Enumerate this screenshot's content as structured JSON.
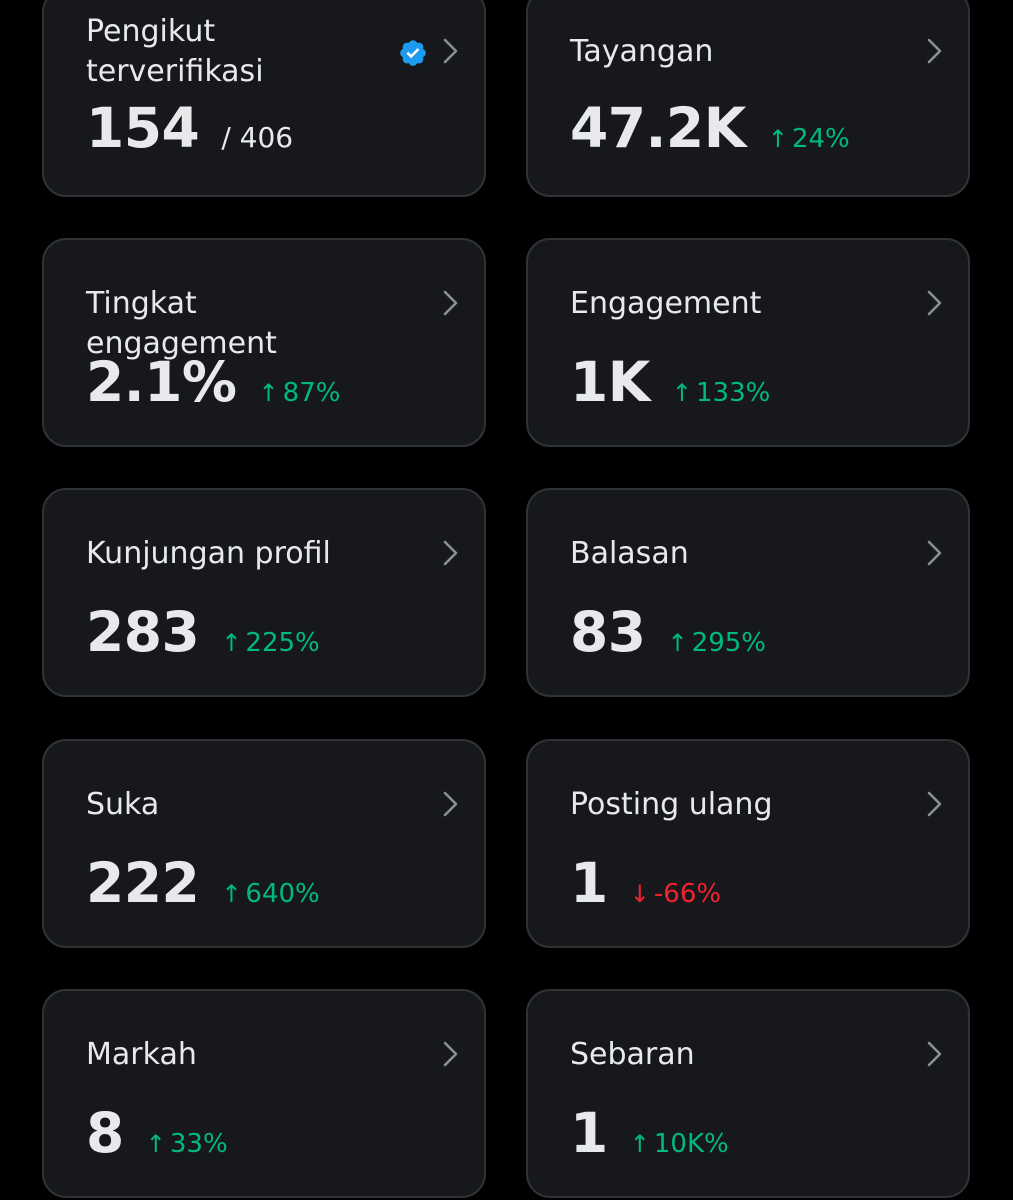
{
  "colors": {
    "background": "#000000",
    "card": "#16181c",
    "card_border": "#2f3336",
    "text": "#e7e9ea",
    "positive": "#00ba7c",
    "negative": "#f4212e",
    "verified": "#1d9bf0"
  },
  "cards": [
    {
      "label": "Pengikut terverifikasi",
      "value": "154",
      "total": "/ 406",
      "icon": "verified-badge-icon"
    },
    {
      "label": "Tayangan",
      "value": "47.2K",
      "arrow": "↑",
      "change": "24%",
      "trend": "up"
    },
    {
      "label": "Tingkat engagement",
      "value": "2.1%",
      "arrow": "↑",
      "change": "87%",
      "trend": "up"
    },
    {
      "label": "Engagement",
      "value": "1K",
      "arrow": "↑",
      "change": "133%",
      "trend": "up"
    },
    {
      "label": "Kunjungan profil",
      "value": "283",
      "arrow": "↑",
      "change": "225%",
      "trend": "up"
    },
    {
      "label": "Balasan",
      "value": "83",
      "arrow": "↑",
      "change": "295%",
      "trend": "up"
    },
    {
      "label": "Suka",
      "value": "222",
      "arrow": "↑",
      "change": "640%",
      "trend": "up"
    },
    {
      "label": "Posting ulang",
      "value": "1",
      "arrow": "↓",
      "change": "-66%",
      "trend": "down"
    },
    {
      "label": "Markah",
      "value": "8",
      "arrow": "↑",
      "change": "33%",
      "trend": "up"
    },
    {
      "label": "Sebaran",
      "value": "1",
      "arrow": "↑",
      "change": "10K%",
      "trend": "up"
    }
  ]
}
